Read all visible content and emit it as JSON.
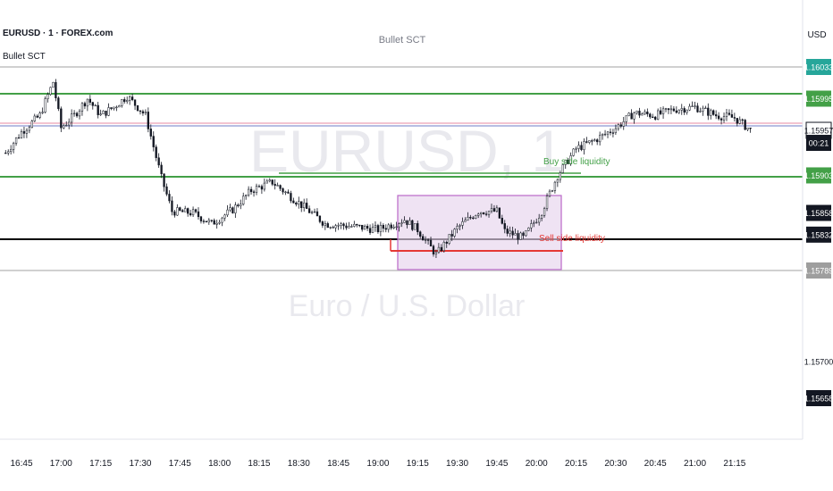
{
  "header": {
    "symbol_line": "EURUSD · 1 · FOREX.com",
    "center_title": "Bullet SCT",
    "indicator_label": "Bullet SCT",
    "currency": "USD"
  },
  "watermark": {
    "symbol": "EURUSD, 1",
    "description": "Euro / U.S. Dollar"
  },
  "annotations": {
    "buy_side": "Buy side liquidity",
    "sell_side": "Sell side liquidity"
  },
  "price_axis": {
    "labels": [
      {
        "name": "price-label-top",
        "text": "1.16033",
        "bg": "#26a69a",
        "fg": "#ffffff",
        "price": 1.16033
      },
      {
        "name": "price-label-upper-level",
        "text": "1.15995",
        "bg": "#43a047",
        "fg": "#ffffff",
        "price": 1.15995
      },
      {
        "name": "price-label-last",
        "text": "1.15957",
        "bg": "#ffffff",
        "fg": "#131722",
        "price": 1.15957,
        "boxed": true
      },
      {
        "name": "price-label-countdown",
        "text": "00:21",
        "bg": "#131722",
        "fg": "#ffffff",
        "price": 1.15942
      },
      {
        "name": "price-label-buy-liquidity",
        "text": "1.15903",
        "bg": "#43a047",
        "fg": "#ffffff",
        "price": 1.15903
      },
      {
        "name": "price-label-dark-1",
        "text": "1.15858",
        "bg": "#131722",
        "fg": "#ffffff",
        "price": 1.15858
      },
      {
        "name": "price-label-dark-2",
        "text": "1.15832",
        "bg": "#131722",
        "fg": "#ffffff",
        "price": 1.15832
      },
      {
        "name": "price-label-lower-level",
        "text": "1.15789",
        "bg": "#9e9e9e",
        "fg": "#ffffff",
        "price": 1.15789
      },
      {
        "name": "price-label-plain",
        "text": "1.15700",
        "bg": "",
        "fg": "#131722",
        "price": 1.157
      },
      {
        "name": "price-label-dark-3",
        "text": "1.15658",
        "bg": "#131722",
        "fg": "#ffffff",
        "price": 1.15658
      }
    ]
  },
  "time_axis": {
    "labels": [
      "16:45",
      "17:00",
      "17:15",
      "17:30",
      "17:45",
      "18:00",
      "18:15",
      "18:30",
      "18:45",
      "19:00",
      "19:15",
      "19:30",
      "19:45",
      "20:00",
      "20:15",
      "20:30",
      "20:45",
      "21:00",
      "21:15"
    ]
  },
  "colors": {
    "green_level": "#43a047",
    "grey_level": "#c8c8c8",
    "blue_level": "#9fa8da",
    "pink_level": "#f3c4d0",
    "black_level": "#000000",
    "red_level": "#e53935",
    "box_fill": "#e7d4ec",
    "box_border": "#ba68c8",
    "candle": "#131722"
  },
  "chart_data": {
    "type": "candlestick",
    "title": "",
    "levels": [
      {
        "name": "upper-grey",
        "price": 1.16033
      },
      {
        "name": "upper-green",
        "price": 1.15995
      },
      {
        "name": "mid-blue",
        "price": 1.15957
      },
      {
        "name": "buy-side-green",
        "price": 1.15903
      },
      {
        "name": "black-level",
        "price": 1.15832
      },
      {
        "name": "lower-grey",
        "price": 1.15789
      }
    ],
    "close_path": [
      {
        "t": "16:39",
        "p": 1.1593
      },
      {
        "t": "16:45",
        "p": 1.15955
      },
      {
        "t": "16:52",
        "p": 1.15975
      },
      {
        "t": "16:57",
        "p": 1.16015
      },
      {
        "t": "17:00",
        "p": 1.1596
      },
      {
        "t": "17:05",
        "p": 1.15975
      },
      {
        "t": "17:10",
        "p": 1.15995
      },
      {
        "t": "17:15",
        "p": 1.15975
      },
      {
        "t": "17:20",
        "p": 1.15985
      },
      {
        "t": "17:25",
        "p": 1.15998
      },
      {
        "t": "17:32",
        "p": 1.15975
      },
      {
        "t": "17:38",
        "p": 1.159
      },
      {
        "t": "17:42",
        "p": 1.1586
      },
      {
        "t": "17:50",
        "p": 1.15858
      },
      {
        "t": "17:57",
        "p": 1.15845
      },
      {
        "t": "18:05",
        "p": 1.15862
      },
      {
        "t": "18:12",
        "p": 1.15885
      },
      {
        "t": "18:20",
        "p": 1.15895
      },
      {
        "t": "18:30",
        "p": 1.1587
      },
      {
        "t": "18:40",
        "p": 1.15845
      },
      {
        "t": "18:50",
        "p": 1.15842
      },
      {
        "t": "19:00",
        "p": 1.15838
      },
      {
        "t": "19:10",
        "p": 1.1585
      },
      {
        "t": "19:15",
        "p": 1.15838
      },
      {
        "t": "19:22",
        "p": 1.15808
      },
      {
        "t": "19:30",
        "p": 1.1584
      },
      {
        "t": "19:38",
        "p": 1.1586
      },
      {
        "t": "19:45",
        "p": 1.1586
      },
      {
        "t": "19:48",
        "p": 1.15836
      },
      {
        "t": "19:55",
        "p": 1.15828
      },
      {
        "t": "20:02",
        "p": 1.1586
      },
      {
        "t": "20:08",
        "p": 1.15903
      },
      {
        "t": "20:15",
        "p": 1.15935
      },
      {
        "t": "20:22",
        "p": 1.15945
      },
      {
        "t": "20:30",
        "p": 1.1596
      },
      {
        "t": "20:37",
        "p": 1.15978
      },
      {
        "t": "20:45",
        "p": 1.15975
      },
      {
        "t": "20:52",
        "p": 1.15982
      },
      {
        "t": "21:00",
        "p": 1.15985
      },
      {
        "t": "21:08",
        "p": 1.15975
      },
      {
        "t": "21:15",
        "p": 1.15972
      },
      {
        "t": "21:22",
        "p": 1.15955
      }
    ]
  }
}
